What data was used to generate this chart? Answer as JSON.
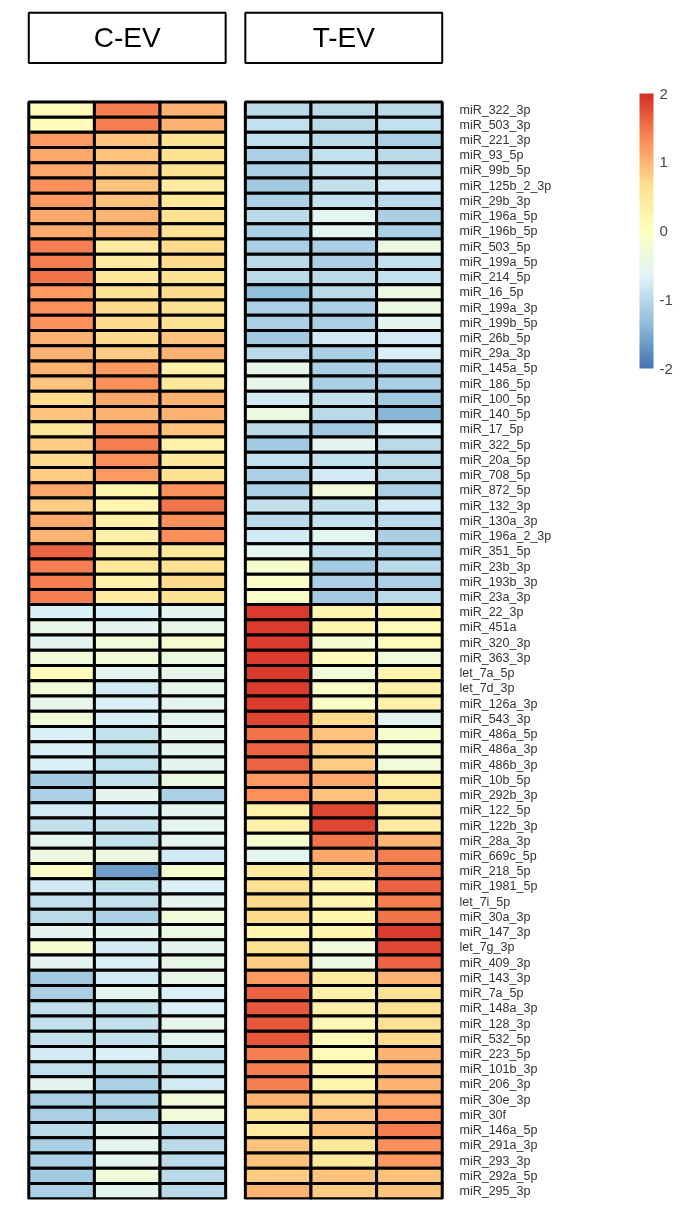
{
  "chart_data": [
    {
      "type": "heatmap",
      "annotations": [
        "C-EV",
        "T-EV"
      ],
      "categories": [
        null,
        null,
        null,
        null,
        null,
        null
      ],
      "tick_labels": "y",
      "clim": [
        -2,
        2
      ],
      "cticks": [
        -2,
        -1,
        0,
        1,
        2
      ],
      "y_categories": [
        "miR_322_3p",
        "miR_503_3p",
        "miR_221_3p",
        "miR_93_5p",
        "miR_99b_5p",
        "miR_125b_2_3p",
        "miR_29b_3p",
        "miR_196a_5p",
        "miR_196b_5p",
        "miR_503_5p",
        "miR_199a_5p",
        "miR_214_5p",
        "miR_16_5p",
        "miR_199a_3p",
        "miR_199b_5p",
        "miR_26b_5p",
        "miR_29a_3p",
        "miR_145a_5p",
        "miR_186_5p",
        "miR_100_5p",
        "miR_140_5p",
        "miR_17_5p",
        "miR_322_5p",
        "miR_20a_5p",
        "miR_708_5p",
        "miR_872_5p",
        "miR_132_3p",
        "miR_130a_3p",
        "miR_196a_2_3p",
        "miR_351_5p",
        "miR_23b_3p",
        "miR_193b_3p",
        "miR_23a_3p",
        "miR_22_3p",
        "miR_451a",
        "miR_320_3p",
        "miR_363_3p",
        "let_7a_5p",
        "let_7d_3p",
        "miR_126a_3p",
        "miR_543_3p",
        "miR_486a_5p",
        "miR_486a_3p",
        "miR_486b_3p",
        "miR_10b_5p",
        "miR_292b_3p",
        "miR_122_5p",
        "miR_122b_3p",
        "miR_28a_3p",
        "miR_669c_5p",
        "miR_218_5p",
        "miR_1981_5p",
        "let_7i_5p",
        "miR_30a_3p",
        "miR_147_3p",
        "let_7g_3p",
        "miR_409_3p",
        "miR_143_3p",
        "miR_7a_5p",
        "miR_148a_3p",
        "miR_128_3p",
        "miR_532_5p",
        "miR_223_5p",
        "miR_101b_3p",
        "miR_206_3p",
        "miR_30e_3p",
        "miR_30f",
        "miR_146a_5p",
        "miR_291a_3p",
        "miR_293_3p",
        "miR_292a_5p",
        "miR_295_3p"
      ],
      "cells": [
        [
          0.1,
          1.4,
          1.0,
          -1,
          -1,
          -1
        ],
        [
          0.05,
          1.4,
          1.0,
          -0.9,
          -1,
          -0.9
        ],
        [
          1.2,
          0.9,
          0.6,
          -0.9,
          -1,
          -1.1
        ],
        [
          1.1,
          0.9,
          0.6,
          -1.1,
          -0.9,
          -1
        ],
        [
          1.1,
          0.9,
          0.6,
          -1.1,
          -0.9,
          -1
        ],
        [
          1.3,
          0.9,
          0.4,
          -1.2,
          -0.9,
          -0.8
        ],
        [
          1.2,
          0.9,
          0.5,
          -1.1,
          -0.9,
          -1
        ],
        [
          1.1,
          1.0,
          0.6,
          -1,
          -0.6,
          -1.1
        ],
        [
          1.1,
          1.0,
          0.6,
          -1.1,
          -0.6,
          -1.1
        ],
        [
          1.4,
          0.4,
          0.7,
          -1.1,
          -1.1,
          -0.4
        ],
        [
          1.4,
          0.4,
          0.7,
          -1,
          -1.1,
          -0.9
        ],
        [
          1.5,
          0.5,
          0.6,
          -1,
          -1,
          -0.9
        ],
        [
          1.2,
          0.6,
          0.7,
          -1.3,
          -1,
          -0.4
        ],
        [
          1.3,
          0.7,
          0.6,
          -1.1,
          -1.1,
          -0.4
        ],
        [
          1.3,
          0.7,
          0.6,
          -1.1,
          -1.1,
          -0.6
        ],
        [
          1.0,
          0.7,
          0.9,
          -1.2,
          -0.8,
          -0.8
        ],
        [
          1.0,
          0.8,
          1.0,
          -1,
          -1.1,
          -0.7
        ],
        [
          1.0,
          1.2,
          0.3,
          -0.5,
          -1.1,
          -1.1
        ],
        [
          0.9,
          1.3,
          0.5,
          -0.5,
          -1.1,
          -1.1
        ],
        [
          0.7,
          1.1,
          1.0,
          -0.8,
          -0.9,
          -1.2
        ],
        [
          0.9,
          1.0,
          1.0,
          -0.4,
          -1,
          -1.4
        ],
        [
          0.5,
          1.2,
          0.9,
          -1,
          -1.2,
          -0.7
        ],
        [
          0.8,
          1.4,
          0.3,
          -1.2,
          -0.6,
          -1
        ],
        [
          0.7,
          1.3,
          0.5,
          -0.9,
          -0.9,
          -1
        ],
        [
          0.8,
          1.2,
          0.6,
          -1.1,
          -0.8,
          -1
        ],
        [
          1.1,
          0.2,
          1.3,
          -1.1,
          -0.3,
          -1.1
        ],
        [
          0.8,
          0.2,
          1.5,
          -0.9,
          -0.9,
          -0.8
        ],
        [
          1.1,
          0.3,
          1.3,
          -1,
          -0.9,
          -1
        ],
        [
          1.0,
          0.3,
          1.3,
          -0.8,
          -0.6,
          -1.1
        ],
        [
          1.6,
          0.4,
          0.5,
          -0.6,
          -0.9,
          -1.1
        ],
        [
          1.4,
          0.5,
          0.6,
          -0.2,
          -1.2,
          -1
        ],
        [
          1.4,
          0.3,
          0.7,
          -0.1,
          -1.1,
          -1.1
        ],
        [
          1.4,
          0.4,
          0.6,
          -0.1,
          -1.2,
          -1
        ],
        [
          -0.7,
          -0.7,
          -0.6,
          1.9,
          0.2,
          0.2
        ],
        [
          -0.5,
          -0.6,
          -0.5,
          1.9,
          0.2,
          0.1
        ],
        [
          -0.6,
          -0.3,
          -0.2,
          1.9,
          -0.2,
          0.1
        ],
        [
          -0.3,
          -0.3,
          -0.4,
          1.9,
          0.05,
          -0.3
        ],
        [
          0.05,
          -0.6,
          -0.5,
          1.9,
          -0.3,
          0.2
        ],
        [
          -0.3,
          -0.8,
          -0.5,
          1.9,
          -0.1,
          0.3
        ],
        [
          -0.5,
          -0.7,
          -0.6,
          1.9,
          -0.1,
          0.3
        ],
        [
          -0.3,
          -0.7,
          -0.6,
          1.8,
          0.7,
          -0.6
        ],
        [
          -0.7,
          -0.9,
          -0.6,
          1.5,
          0.9,
          -0.2
        ],
        [
          -0.7,
          -0.9,
          -0.6,
          1.6,
          0.8,
          -0.2
        ],
        [
          -0.7,
          -0.9,
          -0.6,
          1.6,
          0.8,
          -0.3
        ],
        [
          -1.2,
          -0.9,
          -0.4,
          1.2,
          1.1,
          0.3
        ],
        [
          -1.1,
          -0.6,
          -1.1,
          1.3,
          0.9,
          0.6
        ],
        [
          -0.8,
          -0.8,
          -0.6,
          0.3,
          1.8,
          0.4
        ],
        [
          -0.9,
          -0.9,
          -0.6,
          0.3,
          1.8,
          0.4
        ],
        [
          -0.6,
          -0.9,
          -0.6,
          -0.2,
          1.5,
          1.0
        ],
        [
          -0.4,
          -0.4,
          -0.8,
          -0.6,
          1.1,
          1.4
        ],
        [
          -0.1,
          -1.6,
          -0.2,
          0.4,
          0.6,
          1.4
        ],
        [
          -0.8,
          -0.9,
          -0.7,
          0.6,
          0.2,
          1.6
        ],
        [
          -0.9,
          -0.9,
          -0.6,
          0.7,
          0.2,
          1.4
        ],
        [
          -1.0,
          -1.1,
          -0.3,
          0.7,
          0.2,
          1.5
        ],
        [
          -0.6,
          -0.6,
          -0.4,
          0.2,
          0.2,
          1.9
        ],
        [
          -0.2,
          -0.8,
          -0.6,
          0.6,
          -0.3,
          1.8
        ],
        [
          -0.6,
          -0.7,
          -0.5,
          0.8,
          -0.4,
          1.6
        ],
        [
          -1.2,
          -0.8,
          -0.5,
          1.2,
          0.4,
          1.0
        ],
        [
          -1.1,
          -0.6,
          -0.7,
          1.6,
          0.3,
          0.6
        ],
        [
          -0.9,
          -0.9,
          -0.7,
          1.7,
          0.3,
          0.6
        ],
        [
          -0.9,
          -0.9,
          -0.5,
          1.7,
          0.15,
          0.6
        ],
        [
          -0.9,
          -0.9,
          -0.6,
          1.7,
          0.1,
          0.7
        ],
        [
          -0.8,
          -0.7,
          -0.9,
          1.4,
          0.1,
          1.0
        ],
        [
          -0.9,
          -1.0,
          -0.9,
          1.4,
          0.2,
          1.0
        ],
        [
          -0.6,
          -1.1,
          -0.8,
          1.4,
          0.2,
          1.0
        ],
        [
          -1.1,
          -1.1,
          -0.3,
          1.0,
          0.7,
          1.1
        ],
        [
          -1.1,
          -1.1,
          -0.3,
          0.6,
          0.9,
          1.2
        ],
        [
          -1.0,
          -0.6,
          -1.0,
          0.4,
          0.9,
          1.4
        ],
        [
          -1.1,
          -0.6,
          -1.0,
          0.9,
          0.5,
          1.3
        ],
        [
          -1.1,
          -0.6,
          -1.0,
          0.9,
          0.5,
          1.2
        ],
        [
          -1.2,
          -0.3,
          -1.0,
          0.8,
          0.9,
          0.9
        ],
        [
          -1.1,
          -0.6,
          -1.0,
          1.0,
          0.8,
          0.9
        ]
      ]
    }
  ]
}
